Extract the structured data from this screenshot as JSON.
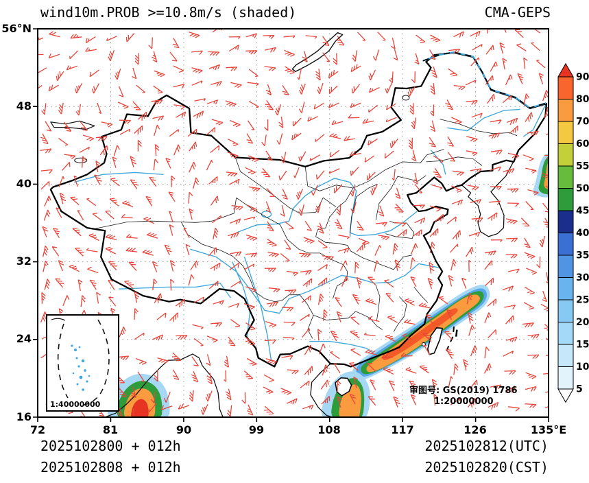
{
  "title": {
    "left": "wind10m.PROB >=10.8m/s (shaded)",
    "right": "CMA-GEPS"
  },
  "axes": {
    "lat_labels": [
      "56°N",
      "48",
      "40",
      "32",
      "24",
      "16"
    ],
    "lon_labels": [
      "72",
      "81",
      "90",
      "99",
      "108",
      "117",
      "126",
      "135°E"
    ]
  },
  "colorbar": {
    "labels": [
      "90",
      "80",
      "70",
      "60",
      "55",
      "50",
      "45",
      "40",
      "35",
      "30",
      "25",
      "20",
      "15",
      "10",
      "5"
    ],
    "segment_colors_top_to_bottom": [
      "#f8652d",
      "#fb9b3f",
      "#f5c842",
      "#c3d03a",
      "#66bd3d",
      "#2e9c3a",
      "#1c2e8c",
      "#3a70d4",
      "#4f95e4",
      "#69b3ee",
      "#86c9f3",
      "#a4daf7",
      "#c4e8fa",
      "#e2f3fc"
    ],
    "arrow_top_color": "#e63322",
    "arrow_bottom_color": "#ffffff"
  },
  "map": {
    "approval_line1": "审图号: GS(2019) 1786",
    "approval_line2": "1:20000000",
    "inset_scale": "1:40000000",
    "barb_color": "#e8453a",
    "river_color": "#3fa8dc",
    "border_color": "#000000",
    "shading_colors": {
      "low": "#a6d8f4",
      "mid_blue": "#56a6e8",
      "green": "#2e9c3a",
      "orange": "#fb9b3f",
      "red": "#e63322"
    }
  },
  "footer": {
    "init_utc": "2025102800 + 012h",
    "init_cst": "2025102808 + 012h",
    "valid_utc": "2025102812(UTC)",
    "valid_cst": "2025102820(CST)"
  },
  "chart_data": {
    "type": "heatmap",
    "title": "wind10m.PROB >=10.8m/s (shaded)",
    "model": "CMA-GEPS",
    "lon_range": [
      72,
      135
    ],
    "lat_range": [
      16,
      56
    ],
    "colorbar_levels": [
      5,
      10,
      15,
      20,
      25,
      30,
      35,
      40,
      45,
      50,
      55,
      60,
      70,
      80,
      90
    ],
    "unit": "probability %",
    "shaded_regions": [
      {
        "name": "southeast-coast-taiwan-strait-band",
        "lon": [
          111,
          128
        ],
        "lat": [
          20,
          29.5
        ],
        "max_prob": 80
      },
      {
        "name": "hainan-south-china-sea",
        "lon": [
          107,
          112.5
        ],
        "lat": [
          16,
          20.5
        ],
        "max_prob": 75
      },
      {
        "name": "bay-of-bengal",
        "lon": [
          80.5,
          88
        ],
        "lat": [
          16,
          20.4
        ],
        "max_prob": 90
      },
      {
        "name": "sea-of-japan-east-edge",
        "lon": [
          133,
          135
        ],
        "lat": [
          38.5,
          43
        ],
        "max_prob": 75
      }
    ]
  }
}
